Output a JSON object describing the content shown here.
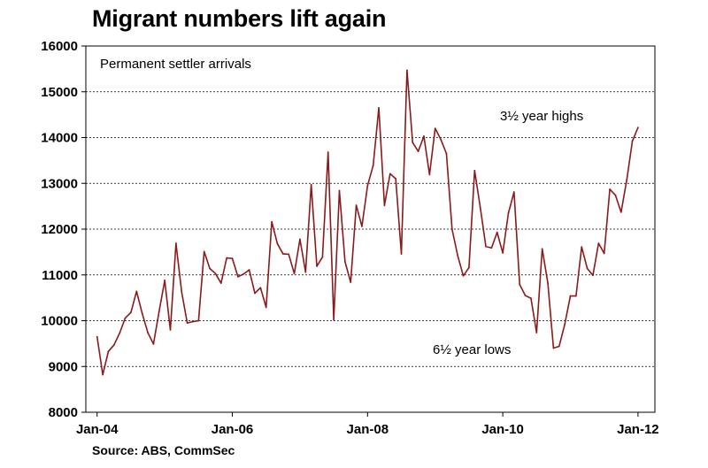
{
  "chart_data": {
    "type": "line",
    "title": "Migrant numbers lift again",
    "subtitle": "Permanent settler arrivals",
    "source": "Source: ABS, CommSec",
    "xlabel": "",
    "ylabel": "",
    "x_start": "2004-01",
    "x_ticks": [
      {
        "value": "2004-01",
        "label": "Jan-04"
      },
      {
        "value": "2006-01",
        "label": "Jan-06"
      },
      {
        "value": "2008-01",
        "label": "Jan-08"
      },
      {
        "value": "2010-01",
        "label": "Jan-10"
      },
      {
        "value": "2012-01",
        "label": "Jan-12"
      }
    ],
    "xlim": [
      "2003-11",
      "2012-04"
    ],
    "ylim": [
      8000,
      16000
    ],
    "y_ticks": [
      8000,
      9000,
      10000,
      11000,
      12000,
      13000,
      14000,
      15000,
      16000
    ],
    "grid": "horizontal dashed",
    "color": "#8b1a1a",
    "annotations": [
      {
        "text": "3½ year highs"
      },
      {
        "text": "6½ year lows"
      }
    ],
    "series": [
      {
        "values": [
          9650,
          8820,
          9330,
          9470,
          9730,
          10060,
          10180,
          10640,
          10160,
          9740,
          9490,
          10200,
          10880,
          9800,
          11690,
          10630,
          9950,
          9980,
          10000,
          11510,
          11140,
          11030,
          10820,
          11370,
          11360,
          10960,
          11020,
          11110,
          10600,
          10720,
          10290,
          12160,
          11680,
          11460,
          11450,
          11030,
          11780,
          11060,
          12970,
          11190,
          11390,
          13680,
          10020,
          12840,
          11290,
          10840,
          12520,
          12060,
          12950,
          13390,
          14650,
          12520,
          13210,
          13100,
          11460,
          15470,
          13890,
          13700,
          14030,
          13190,
          14200,
          13960,
          13650,
          12000,
          11420,
          10980,
          11160,
          13280,
          12480,
          11620,
          11590,
          11930,
          11480,
          12350,
          12810,
          10790,
          10550,
          10490,
          9740,
          11570,
          10820,
          9400,
          9440,
          9920,
          10540,
          10540,
          11610,
          11140,
          10990,
          11690,
          11470,
          12870,
          12740,
          12370,
          13070,
          13920,
          14220
        ]
      }
    ]
  }
}
